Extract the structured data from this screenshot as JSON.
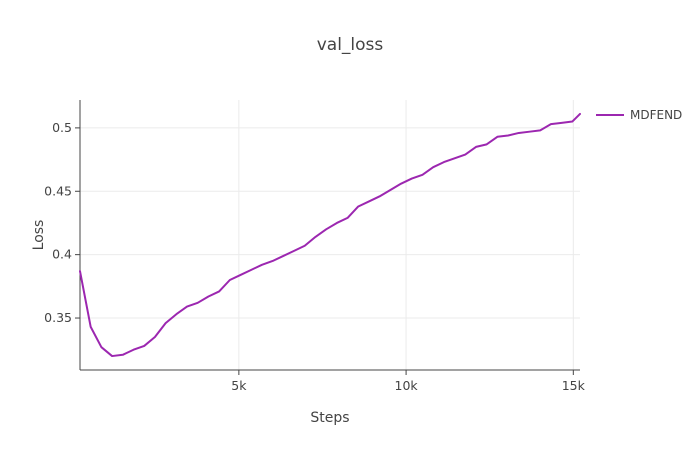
{
  "chart_data": {
    "type": "line",
    "title": "val_loss",
    "xlabel": "Steps",
    "ylabel": "Loss",
    "x_ticks": [
      {
        "value": 5000,
        "label": "5k"
      },
      {
        "value": 10000,
        "label": "10k"
      },
      {
        "value": 15000,
        "label": "15k"
      }
    ],
    "y_ticks": [
      {
        "value": 0.35,
        "label": "0.35"
      },
      {
        "value": 0.4,
        "label": "0.4"
      },
      {
        "value": 0.45,
        "label": "0.45"
      },
      {
        "value": 0.5,
        "label": "0.5"
      }
    ],
    "xlim": [
      250,
      15200
    ],
    "ylim": [
      0.309,
      0.522
    ],
    "grid": true,
    "legend_position": "top-right",
    "series": [
      {
        "name": "MDFEND",
        "color": "#9c27b0",
        "x": [
          250,
          570,
          890,
          1210,
          1530,
          1850,
          2170,
          2490,
          2810,
          3130,
          3450,
          3770,
          4090,
          4410,
          4730,
          5050,
          5370,
          5690,
          6010,
          6330,
          6650,
          6970,
          7290,
          7610,
          7930,
          8250,
          8570,
          8890,
          9210,
          9530,
          9850,
          10170,
          10490,
          10810,
          11130,
          11450,
          11770,
          12090,
          12410,
          12730,
          13050,
          13370,
          13690,
          14010,
          14330,
          14650,
          14970,
          15200
        ],
        "y": [
          0.387,
          0.343,
          0.327,
          0.32,
          0.321,
          0.325,
          0.328,
          0.335,
          0.346,
          0.353,
          0.359,
          0.362,
          0.367,
          0.371,
          0.38,
          0.384,
          0.388,
          0.392,
          0.395,
          0.399,
          0.403,
          0.407,
          0.414,
          0.42,
          0.425,
          0.429,
          0.438,
          0.442,
          0.446,
          0.451,
          0.456,
          0.46,
          0.463,
          0.469,
          0.473,
          0.476,
          0.479,
          0.485,
          0.487,
          0.493,
          0.494,
          0.496,
          0.497,
          0.498,
          0.503,
          0.504,
          0.505,
          0.511
        ]
      }
    ]
  }
}
